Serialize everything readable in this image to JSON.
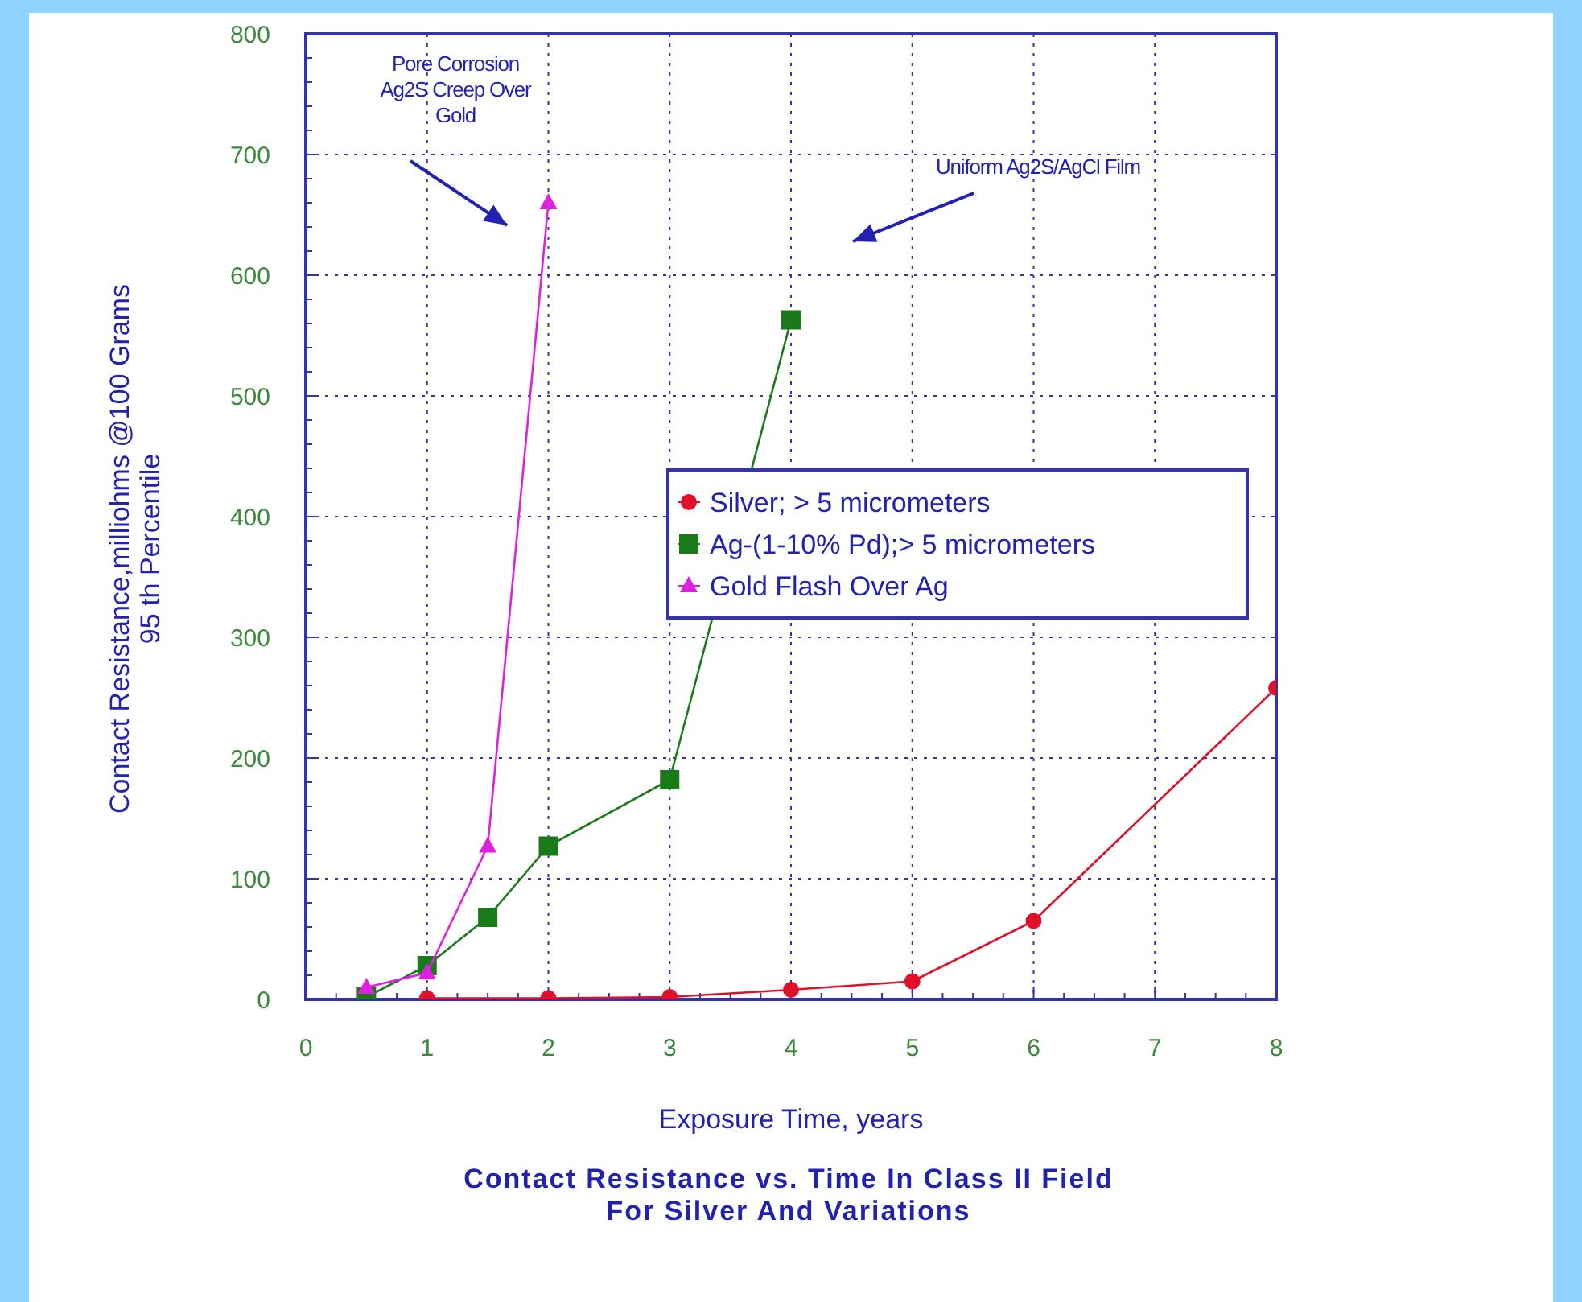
{
  "chart_data": {
    "type": "line",
    "title": "Contact Resistance vs. Time In Class II Field\nFor Silver And Variations",
    "xlabel": "Exposure Time, years",
    "ylabel": "Contact Resistance,milliohms @100 Grams\n95 th Percentile",
    "series": [
      {
        "name": "Silver; > 5 micrometers",
        "color": "#e0102a",
        "marker": "circle",
        "x": [
          1,
          2,
          3,
          4,
          5,
          6,
          8
        ],
        "values": [
          1,
          1,
          2,
          8,
          15,
          65,
          258
        ]
      },
      {
        "name": "Ag-(1-10% Pd);> 5 micrometers",
        "color": "#1a7a1a",
        "marker": "square",
        "x": [
          0.5,
          1,
          1.5,
          2,
          3,
          4
        ],
        "values": [
          2,
          28,
          68,
          127,
          182,
          563
        ]
      },
      {
        "name": "Gold Flash Over Ag",
        "color": "#e020e0",
        "marker": "triangle",
        "x": [
          0.5,
          1,
          1.5,
          2
        ],
        "values": [
          10,
          22,
          127,
          660
        ]
      }
    ],
    "xlim": [
      0,
      8
    ],
    "xticks": [
      0,
      1,
      2,
      3,
      4,
      5,
      6,
      7,
      8
    ],
    "ylim": [
      0,
      800
    ],
    "yticks": [
      0,
      100,
      200,
      300,
      400,
      500,
      600,
      700,
      800
    ],
    "grid": true,
    "legend": "right",
    "annotations": [
      "Pore Corrosion\nAg2S Creep Over\nGold",
      "Uniform Ag2S/AgCl Film"
    ]
  }
}
